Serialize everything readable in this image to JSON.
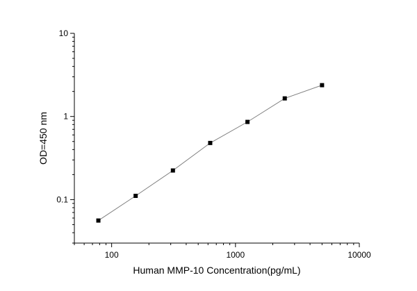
{
  "chart_data": {
    "type": "scatter",
    "title": "",
    "xlabel": "Human MMP-10 Concentration(pg/mL)",
    "ylabel": "OD=450 nm",
    "x_scale": "log",
    "y_scale": "log",
    "xlim": [
      50,
      10000
    ],
    "ylim": [
      0.03,
      10
    ],
    "x_ticks": [
      {
        "value": 100,
        "label": "100"
      },
      {
        "value": 1000,
        "label": "1000"
      },
      {
        "value": 10000,
        "label": "10000"
      }
    ],
    "y_ticks": [
      {
        "value": 0.1,
        "label": "0.1"
      },
      {
        "value": 1,
        "label": "1"
      },
      {
        "value": 10,
        "label": "10"
      }
    ],
    "grid": false,
    "legend": "none",
    "series": [
      {
        "x": [
          78.125,
          156.25,
          312.5,
          625,
          1250,
          2500,
          5000
        ],
        "y": [
          0.056,
          0.111,
          0.224,
          0.48,
          0.86,
          1.65,
          2.38
        ],
        "marker": "square",
        "connected": true
      }
    ],
    "colors": {
      "line": "#7f7f7f",
      "marker": "#000000",
      "axis": "#000000"
    }
  }
}
